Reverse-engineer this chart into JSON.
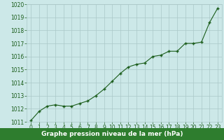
{
  "x": [
    0,
    1,
    2,
    3,
    4,
    5,
    6,
    7,
    8,
    9,
    10,
    11,
    12,
    13,
    14,
    15,
    16,
    17,
    18,
    19,
    20,
    21,
    22,
    23
  ],
  "y": [
    1011.1,
    1011.8,
    1012.2,
    1012.3,
    1012.2,
    1012.2,
    1012.4,
    1012.6,
    1013.0,
    1013.5,
    1014.1,
    1014.7,
    1015.2,
    1015.4,
    1015.5,
    1016.0,
    1016.1,
    1016.4,
    1016.4,
    1017.0,
    1017.0,
    1017.1,
    1018.6,
    1019.7
  ],
  "ylim": [
    1011,
    1020
  ],
  "yticks": [
    1011,
    1012,
    1013,
    1014,
    1015,
    1016,
    1017,
    1018,
    1019,
    1020
  ],
  "xlim": [
    -0.5,
    23.5
  ],
  "xticks": [
    0,
    1,
    2,
    3,
    4,
    5,
    6,
    7,
    8,
    9,
    10,
    11,
    12,
    13,
    14,
    15,
    16,
    17,
    18,
    19,
    20,
    21,
    22,
    23
  ],
  "line_color": "#1a5c1a",
  "marker_color": "#1a5c1a",
  "bg_color": "#cce8e8",
  "grid_color": "#aac8c8",
  "xlabel": "Graphe pression niveau de la mer (hPa)",
  "xlabel_color": "#ffffff",
  "xlabel_bg": "#2e7d2e",
  "tick_color": "#1a5c1a",
  "tick_fontsize": 5.5,
  "xlabel_fontsize": 6.5
}
